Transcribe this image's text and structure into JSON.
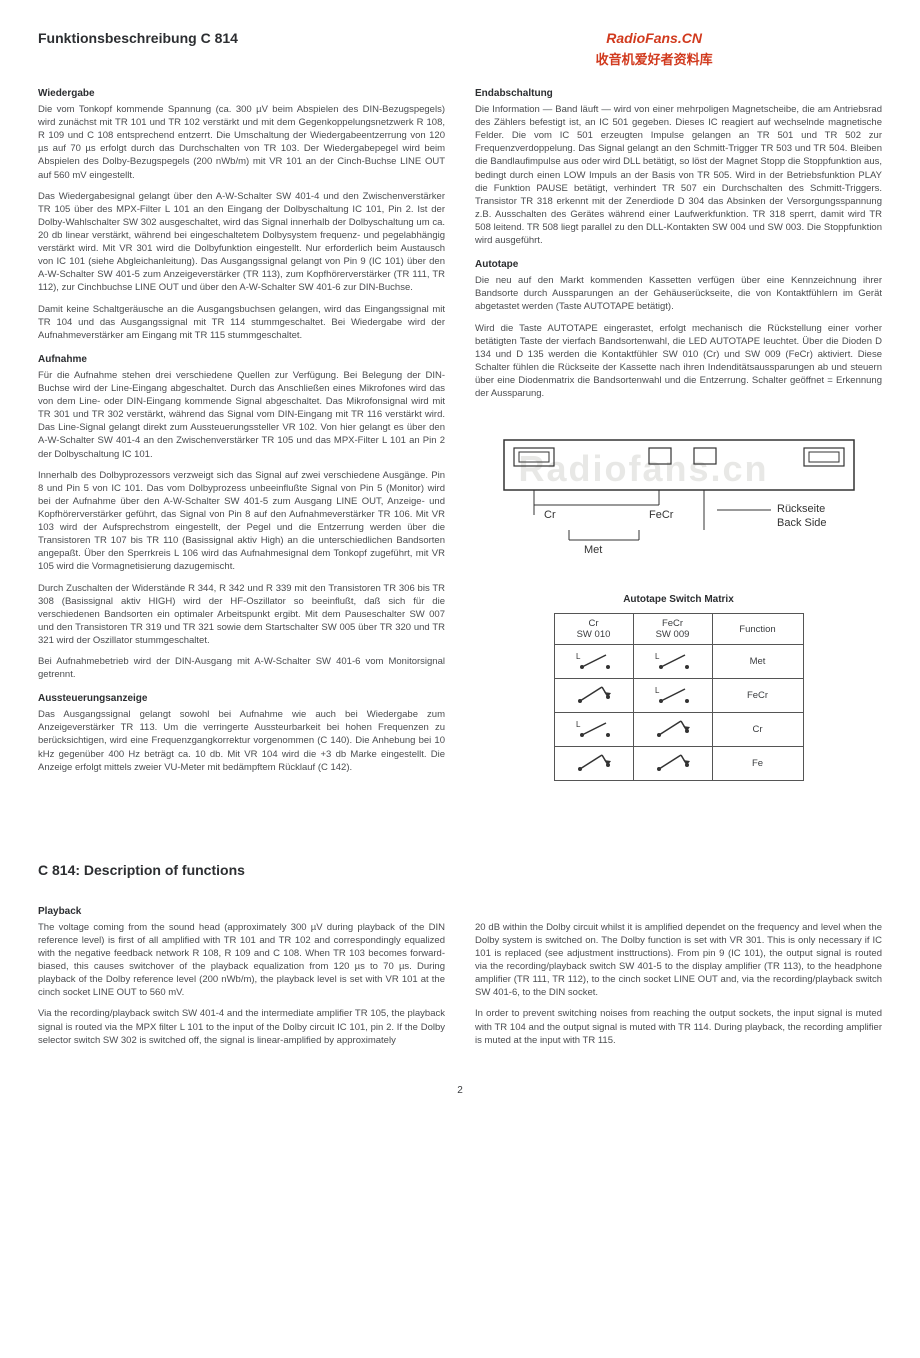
{
  "header": {
    "title_de": "Funktionsbeschreibung C 814",
    "watermark_red": "RadioFans.CN",
    "watermark_cn": "收音机爱好者资料库",
    "watermark_bg": "Radiofans.cn"
  },
  "de_left": {
    "wiedergabe_head": "Wiedergabe",
    "wiedergabe_p1": "Die vom Tonkopf kommende Spannung (ca. 300 µV beim Abspielen des DIN-Bezugspegels) wird zunächst mit TR 101 und TR 102 verstärkt und mit dem Gegenkoppelungsnetzwerk R 108, R 109 und C 108 entsprechend entzerrt. Die Umschaltung der Wiedergabeentzerrung von 120 µs auf 70 µs erfolgt durch das Durchschalten von TR 103. Der Wiedergabepegel wird beim Abspielen des Dolby-Bezugspegels (200 nWb/m) mit VR 101 an der Cinch-Buchse LINE OUT auf 560 mV eingestellt.",
    "wiedergabe_p2": "Das Wiedergabesignal gelangt über den A-W-Schalter SW 401-4 und den Zwischenverstärker TR 105 über des MPX-Filter L 101 an den Eingang der Dolbyschaltung IC 101, Pin 2. Ist der Dolby-Wahlschalter SW 302 ausgeschaltet, wird das Signal innerhalb der Dolbyschaltung um ca. 20 db linear verstärkt, während bei eingeschaltetem Dolbysystem frequenz- und pegelabhängig verstärkt wird. Mit VR 301 wird die Dolbyfunktion eingestellt. Nur erforderlich beim Austausch von IC 101 (siehe Abgleichanleitung). Das Ausgangssignal gelangt von Pin 9 (IC 101) über den A-W-Schalter SW 401-5 zum Anzeigeverstärker (TR 113), zum Kopfhörerverstärker (TR 111, TR 112), zur Cinchbuchse LINE OUT und über den A-W-Schalter SW 401-6 zur DIN-Buchse.",
    "wiedergabe_p3": "Damit keine Schaltgeräusche an die Ausgangsbuchsen gelangen, wird das Eingangssignal mit TR 104 und das Ausgangssignal mit TR 114 stummgeschaltet. Bei Wiedergabe wird der Aufnahmeverstärker am Eingang mit TR 115 stummgeschaltet.",
    "aufnahme_head": "Aufnahme",
    "aufnahme_p1": "Für die Aufnahme stehen drei verschiedene Quellen zur Verfügung. Bei Belegung der DIN-Buchse wird der Line-Eingang abgeschaltet. Durch das Anschließen eines Mikrofones wird das von dem Line- oder DIN-Eingang kommende Signal abgeschaltet. Das Mikrofonsignal wird mit TR 301 und TR 302 verstärkt, während das Signal vom DIN-Eingang mit TR 116 verstärkt wird. Das Line-Signal gelangt direkt zum Aussteuerungssteller VR 102. Von hier gelangt es über den A-W-Schalter SW 401-4 an den Zwischenverstärker TR 105 und das MPX-Filter L 101 an Pin 2 der Dolbyschaltung IC 101.",
    "aufnahme_p2": "Innerhalb des Dolbyprozessors verzweigt sich das Signal auf zwei verschiedene Ausgänge. Pin 8 und Pin 5 von IC 101. Das vom Dolbyprozess unbeeinflußte Signal von Pin 5 (Monitor) wird bei der Aufnahme über den A-W-Schalter SW 401-5 zum Ausgang LINE OUT, Anzeige- und Kopfhörerverstärker geführt, das Signal von Pin 8 auf den Aufnahmeverstärker TR 106. Mit VR 103 wird der Aufsprechstrom eingestellt, der Pegel und die Entzerrung werden über die Transistoren TR 107 bis TR 110 (Basissignal aktiv High) an die unterschiedlichen Bandsorten angepaßt. Über den Sperrkreis L 106 wird das Aufnahmesignal dem Tonkopf zugeführt, mit VR 105 wird die Vormagnetisierung dazugemischt.",
    "aufnahme_p3": "Durch Zuschalten der Widerstände R 344, R 342 und R 339 mit den Transistoren TR 306 bis TR 308 (Basissignal aktiv HIGH) wird der HF-Oszillator so beeinflußt, daß sich für die verschiedenen Bandsorten ein optimaler Arbeitspunkt ergibt. Mit dem Pauseschalter SW 007 und den Transistoren TR 319 und TR 321 sowie dem Startschalter SW 005 über TR 320 und TR 321 wird der Oszillator stummgeschaltet.",
    "aufnahme_p4": "Bei Aufnahmebetrieb wird der DIN-Ausgang mit A-W-Schalter SW 401-6 vom Monitorsignal getrennt.",
    "auss_head": "Aussteuerungsanzeige",
    "auss_p1": "Das Ausgangssignal gelangt sowohl bei Aufnahme wie auch bei Wiedergabe zum Anzeigeverstärker TR 113. Um die verringerte Aussteurbarkeit bei hohen Frequenzen zu berücksichtigen, wird eine Frequenzgangkorrektur vorgenommen (C 140). Die Anhebung bei 10 kHz gegenüber 400 Hz beträgt ca. 10 db. Mit VR 104 wird die +3 db Marke eingestellt. Die Anzeige erfolgt mittels zweier VU-Meter mit bedämpftem Rücklauf (C 142)."
  },
  "de_right": {
    "end_head": "Endabschaltung",
    "end_p1": "Die Information — Band läuft — wird von einer mehrpoligen Magnetscheibe, die am Antriebsrad des Zählers befestigt ist, an IC 501 gegeben. Dieses IC reagiert auf wechselnde magnetische Felder. Die vom IC 501 erzeugten Impulse gelangen an TR 501 und TR 502 zur Frequenzverdoppelung. Das Signal gelangt an den Schmitt-Trigger TR 503 und TR 504. Bleiben die Bandlaufimpulse aus oder wird DLL betätigt, so löst der Magnet Stopp die Stoppfunktion aus, bedingt durch einen LOW Impuls an der Basis von TR 505. Wird in der Betriebsfunktion PLAY die Funktion PAUSE betätigt, verhindert TR 507 ein Durchschalten des Schmitt-Triggers. Transistor TR 318 erkennt mit der Zenerdiode D 304 das Absinken der Versorgungsspannung z.B. Ausschalten des Gerätes während einer Laufwerkfunktion. TR 318 sperrt, damit wird TR 508 leitend. TR 508 liegt parallel zu den DLL-Kontakten SW 004 und SW 003. Die Stoppfunktion wird ausgeführt.",
    "auto_head": "Autotape",
    "auto_p1": "Die neu auf den Markt kommenden Kassetten verfügen über eine Kennzeichnung ihrer Bandsorte durch Aussparungen an der Gehäuserückseite, die von Kontaktfühlern im Gerät abgetastet werden (Taste AUTOTAPE betätigt).",
    "auto_p2": "Wird die Taste AUTOTAPE eingerastet, erfolgt mechanisch die Rückstellung einer vorher betätigten Taste der vierfach Bandsortenwahl, die LED AUTOTAPE leuchtet. Über die Dioden D 134 und D 135 werden die Kontaktfühler SW 010 (Cr) und SW 009 (FeCr) aktiviert. Diese Schalter fühlen die Rückseite der Kassette nach ihren Indenditätsaussparungen ab und steuern über eine Diodenmatrix die Bandsortenwahl und die Entzerrung. Schalter geöffnet = Erkennung der Aussparung."
  },
  "diagram": {
    "label_cr": "Cr",
    "label_fecr": "FeCr",
    "label_met": "Met",
    "label_back1": "Rückseite",
    "label_back2": "Back Side"
  },
  "matrix": {
    "title": "Autotape Switch Matrix",
    "head_cr1": "Cr",
    "head_cr2": "SW 010",
    "head_fecr1": "FeCr",
    "head_fecr2": "SW 009",
    "head_fn": "Function",
    "rows": [
      {
        "s1": "open",
        "s2": "open",
        "fn": "Met"
      },
      {
        "s1": "closed",
        "s2": "open",
        "fn": "FeCr"
      },
      {
        "s1": "open",
        "s2": "closed",
        "fn": "Cr"
      },
      {
        "s1": "closed",
        "s2": "closed",
        "fn": "Fe"
      }
    ]
  },
  "en": {
    "title": "C 814: Description of functions",
    "play_head": "Playback",
    "play_p1": "The voltage coming from the sound head (approximately 300 µV during playback of the DIN reference level) is first of all amplified with TR 101 and TR 102 and correspondingly equalized with the negative feedback network R 108, R 109 and C 108. When TR 103 becomes forward-biased, this causes switchover of the playback equalization from 120 µs to 70 µs. During playback of the Dolby reference level (200 nWb/m), the playback level is set with VR 101 at the cinch socket LINE OUT to 560 mV.",
    "play_p2": "Via the recording/playback switch SW 401-4 and the intermediate amplifier TR 105, the playback signal is routed via the MPX filter L 101 to the input of the Dolby circuit IC 101, pin 2. If the Dolby selector switch SW 302 is switched off, the signal is linear-amplified by approximately",
    "play_p3": "20 dB within the Dolby circuit whilst it is amplified dependet on the frequency and level when the Dolby system is switched on. The Dolby function is set with VR 301. This is only necessary if IC 101 is replaced (see adjustment insttructions). From pin 9 (IC 101), the output signal is routed via the recording/playback switch SW 401-5 to the display amplifier (TR 113), to the headphone amplifier (TR 111, TR 112), to the cinch socket LINE OUT and, via the recording/playback switch SW 401-6, to the DIN socket.",
    "play_p4": "In order to prevent switching noises from reaching the output sockets, the input signal is muted with TR 104 and the output signal is muted with TR 114. During playback, the recording amplifier is muted at the input with TR 115."
  },
  "page_number": "2"
}
